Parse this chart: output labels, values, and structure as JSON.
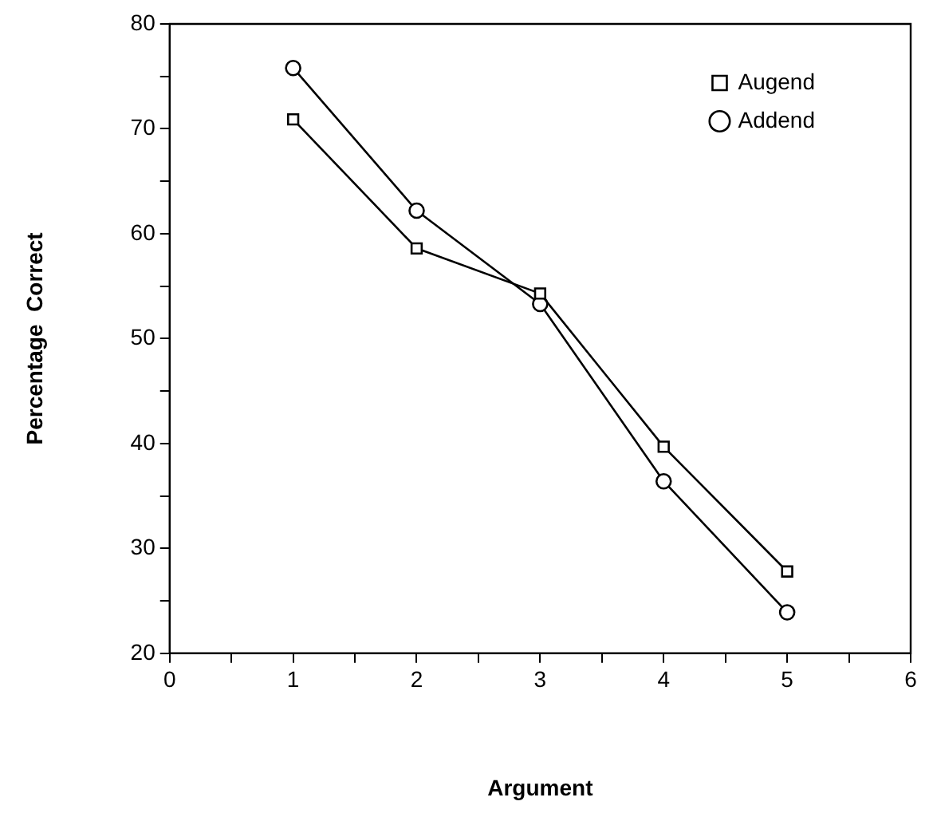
{
  "chart_data": {
    "type": "line",
    "xlabel": "Argument",
    "ylabel": "Percentage  Correct",
    "x": [
      1,
      2,
      3,
      4,
      5
    ],
    "series": [
      {
        "name": "Augend",
        "color": "#000000",
        "marker": "square",
        "values": [
          70.9,
          58.6,
          54.3,
          39.7,
          27.8
        ]
      },
      {
        "name": "Addend",
        "color": "#000000",
        "marker": "circle",
        "values": [
          75.8,
          62.2,
          53.3,
          36.4,
          23.9
        ]
      }
    ],
    "xlim": [
      0,
      6
    ],
    "xticks": [
      0,
      {
        "value": 0.5,
        "label": null
      },
      1,
      {
        "value": 1.5,
        "label": null
      },
      2,
      {
        "value": 2.5,
        "label": null
      },
      3,
      {
        "value": 3.5,
        "label": null
      },
      4,
      {
        "value": 4.5,
        "label": null
      },
      5,
      {
        "value": 5.5,
        "label": null
      },
      6
    ],
    "ylim": [
      20,
      80
    ],
    "yticks": [
      20,
      {
        "value": 25,
        "label": null
      },
      30,
      {
        "value": 35,
        "label": null
      },
      40,
      {
        "value": 45,
        "label": null
      },
      50,
      {
        "value": 55,
        "label": null
      },
      60,
      {
        "value": 65,
        "label": null
      },
      70,
      {
        "value": 75,
        "label": null
      },
      80
    ],
    "grid": false,
    "legend": "top right",
    "line_style": "solid"
  }
}
